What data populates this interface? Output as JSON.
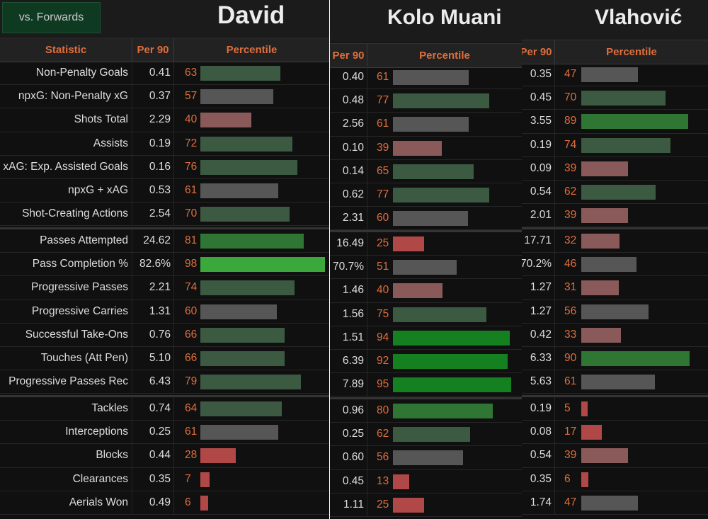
{
  "filter_button": "vs. Forwards",
  "headers": {
    "statistic": "Statistic",
    "per90": "Per 90",
    "percentile": "Percentile"
  },
  "stat_labels": [
    "Non-Penalty Goals",
    "npxG: Non-Penalty xG",
    "Shots Total",
    "Assists",
    "xAG: Exp. Assisted Goals",
    "npxG + xAG",
    "Shot-Creating Actions",
    "Passes Attempted",
    "Pass Completion %",
    "Progressive Passes",
    "Progressive Carries",
    "Successful Take-Ons",
    "Touches (Att Pen)",
    "Progressive Passes Rec",
    "Tackles",
    "Interceptions",
    "Blocks",
    "Clearances",
    "Aerials Won"
  ],
  "colors": {
    "page_bg": "#101010",
    "header_bg": "#222222",
    "title_bar_bg": "#1b1b1b",
    "accent_orange": "#e06e3c",
    "filter_button_bg": "#0f3a22",
    "bar_scale": [
      {
        "p": 0,
        "color": "#b04848"
      },
      {
        "p": 30,
        "color": "#8a5a5a"
      },
      {
        "p": 45,
        "color": "#565656"
      },
      {
        "p": 62,
        "color": "#3b5a41"
      },
      {
        "p": 80,
        "color": "#2f7533"
      },
      {
        "p": 92,
        "color": "#15801f"
      },
      {
        "p": 98,
        "color": "#3aa83a"
      }
    ]
  },
  "chart_data": {
    "type": "table",
    "players": [
      {
        "name": "David",
        "per90": [
          "0.41",
          "0.37",
          "2.29",
          "0.19",
          "0.16",
          "0.53",
          "2.54",
          "24.62",
          "82.6%",
          "2.21",
          "1.31",
          "0.76",
          "5.10",
          "6.43",
          "0.74",
          "0.25",
          "0.44",
          "0.35",
          "0.49"
        ],
        "percentile": [
          63,
          57,
          40,
          72,
          76,
          61,
          70,
          81,
          98,
          74,
          60,
          66,
          66,
          79,
          64,
          61,
          28,
          7,
          6
        ]
      },
      {
        "name": "Kolo Muani",
        "per90": [
          "0.40",
          "0.48",
          "2.56",
          "0.10",
          "0.14",
          "0.62",
          "2.31",
          "16.49",
          "70.7%",
          "1.46",
          "1.56",
          "1.51",
          "6.39",
          "7.89",
          "0.96",
          "0.25",
          "0.60",
          "0.45",
          "1.11"
        ],
        "percentile": [
          61,
          77,
          61,
          39,
          65,
          77,
          60,
          25,
          51,
          40,
          75,
          94,
          92,
          95,
          80,
          62,
          56,
          13,
          25
        ]
      },
      {
        "name": "Vlahović",
        "per90": [
          "0.35",
          "0.45",
          "3.55",
          "0.19",
          "0.09",
          "0.54",
          "2.01",
          "17.71",
          "70.2%",
          "1.27",
          "1.27",
          "0.42",
          "6.33",
          "5.63",
          "0.19",
          "0.08",
          "0.54",
          "0.35",
          "1.74"
        ],
        "percentile": [
          47,
          70,
          89,
          74,
          39,
          62,
          39,
          32,
          46,
          31,
          56,
          33,
          90,
          61,
          5,
          17,
          39,
          6,
          47
        ]
      }
    ]
  }
}
